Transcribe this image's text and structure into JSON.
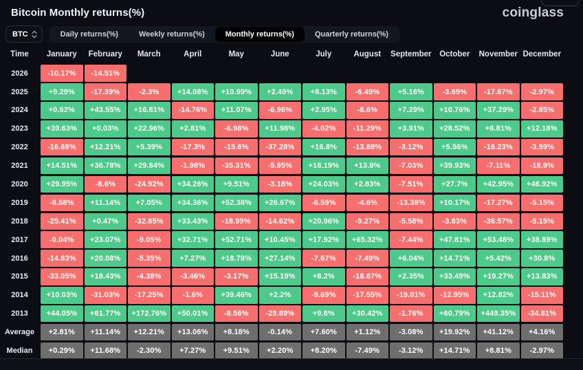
{
  "header": {
    "title": "Bitcoin Monthly returns(%)",
    "brand": "coinglass"
  },
  "controls": {
    "symbol_select": {
      "value": "BTC"
    },
    "tabs": [
      {
        "label": "Daily returns(%)",
        "active": false
      },
      {
        "label": "Weekly returns(%)",
        "active": false
      },
      {
        "label": "Monthly returns(%)",
        "active": true
      },
      {
        "label": "Quarterly returns(%)",
        "active": false
      }
    ]
  },
  "icons": {
    "select_chevrons": "up-down-chevrons"
  },
  "colors": {
    "positive": "#4DC98B",
    "negative": "#F66E6E",
    "summary": "#6E6E6E",
    "background": "#0b0d12"
  },
  "chart_data": {
    "type": "heatmap",
    "title": "Bitcoin Monthly returns(%)",
    "time_column_header": "Time",
    "columns": [
      "January",
      "February",
      "March",
      "April",
      "May",
      "June",
      "July",
      "August",
      "September",
      "October",
      "November",
      "December"
    ],
    "rows": [
      {
        "label": "2026",
        "kind": "year",
        "values": [
          "-10.17%",
          "-14.51%",
          "",
          "",
          "",
          "",
          "",
          "",
          "",
          "",
          "",
          ""
        ]
      },
      {
        "label": "2025",
        "kind": "year",
        "values": [
          "+9.29%",
          "-17.39%",
          "-2.3%",
          "+14.08%",
          "+10.99%",
          "+2.49%",
          "+8.13%",
          "-6.49%",
          "+5.16%",
          "-3.69%",
          "-17.67%",
          "-2.97%"
        ]
      },
      {
        "label": "2024",
        "kind": "year",
        "values": [
          "+0.62%",
          "+43.55%",
          "+16.81%",
          "-14.76%",
          "+11.07%",
          "-6.96%",
          "+2.95%",
          "-8.6%",
          "+7.29%",
          "+10.76%",
          "+37.29%",
          "-2.85%"
        ]
      },
      {
        "label": "2023",
        "kind": "year",
        "values": [
          "+39.63%",
          "+0.03%",
          "+22.96%",
          "+2.81%",
          "-6.98%",
          "+11.98%",
          "-4.02%",
          "-11.29%",
          "+3.91%",
          "+28.52%",
          "+8.81%",
          "+12.18%"
        ]
      },
      {
        "label": "2022",
        "kind": "year",
        "values": [
          "-16.68%",
          "+12.21%",
          "+5.39%",
          "-17.3%",
          "-15.6%",
          "-37.28%",
          "+16.8%",
          "-13.88%",
          "-3.12%",
          "+5.56%",
          "-16.23%",
          "-3.59%"
        ]
      },
      {
        "label": "2021",
        "kind": "year",
        "values": [
          "+14.51%",
          "+36.78%",
          "+29.84%",
          "-1.98%",
          "-35.31%",
          "-5.95%",
          "+18.19%",
          "+13.8%",
          "-7.03%",
          "+39.93%",
          "-7.11%",
          "-18.9%"
        ]
      },
      {
        "label": "2020",
        "kind": "year",
        "values": [
          "+29.95%",
          "-8.6%",
          "-24.92%",
          "+34.26%",
          "+9.51%",
          "-3.18%",
          "+24.03%",
          "+2.83%",
          "-7.51%",
          "+27.7%",
          "+42.95%",
          "+46.92%"
        ]
      },
      {
        "label": "2019",
        "kind": "year",
        "values": [
          "-8.58%",
          "+11.14%",
          "+7.05%",
          "+34.36%",
          "+52.38%",
          "+26.67%",
          "-6.59%",
          "-4.6%",
          "-13.38%",
          "+10.17%",
          "-17.27%",
          "-5.15%"
        ]
      },
      {
        "label": "2018",
        "kind": "year",
        "values": [
          "-25.41%",
          "+0.47%",
          "-32.85%",
          "+33.43%",
          "-18.99%",
          "-14.62%",
          "+20.96%",
          "-9.27%",
          "-5.58%",
          "-3.83%",
          "-36.57%",
          "-5.15%"
        ]
      },
      {
        "label": "2017",
        "kind": "year",
        "values": [
          "-0.04%",
          "+23.07%",
          "-9.05%",
          "+32.71%",
          "+52.71%",
          "+10.45%",
          "+17.92%",
          "+65.32%",
          "-7.44%",
          "+47.81%",
          "+53.48%",
          "+38.89%"
        ]
      },
      {
        "label": "2016",
        "kind": "year",
        "values": [
          "-14.83%",
          "+20.08%",
          "-5.35%",
          "+7.27%",
          "+18.78%",
          "+27.14%",
          "-7.67%",
          "-7.49%",
          "+6.04%",
          "+14.71%",
          "+5.42%",
          "+30.8%"
        ]
      },
      {
        "label": "2015",
        "kind": "year",
        "values": [
          "-33.05%",
          "+18.43%",
          "-4.38%",
          "-3.46%",
          "-3.17%",
          "+15.19%",
          "+8.2%",
          "-18.67%",
          "+2.35%",
          "+33.49%",
          "+19.27%",
          "+13.83%"
        ]
      },
      {
        "label": "2014",
        "kind": "year",
        "values": [
          "+10.03%",
          "-31.03%",
          "-17.25%",
          "-1.6%",
          "+39.46%",
          "+2.2%",
          "-9.69%",
          "-17.55%",
          "-19.01%",
          "-12.95%",
          "+12.82%",
          "-15.11%"
        ]
      },
      {
        "label": "2013",
        "kind": "year",
        "values": [
          "+44.05%",
          "+61.77%",
          "+172.76%",
          "+50.01%",
          "-8.56%",
          "-29.89%",
          "+9.6%",
          "+30.42%",
          "-1.76%",
          "+60.79%",
          "+449.35%",
          "-34.81%"
        ]
      },
      {
        "label": "Average",
        "kind": "summary",
        "values": [
          "+2.81%",
          "+11.14%",
          "+12.21%",
          "+13.06%",
          "+8.18%",
          "-0.14%",
          "+7.60%",
          "+1.12%",
          "-3.08%",
          "+19.92%",
          "+41.12%",
          "+4.16%"
        ]
      },
      {
        "label": "Median",
        "kind": "summary",
        "values": [
          "+0.29%",
          "+11.68%",
          "-2.30%",
          "+7.27%",
          "+9.51%",
          "+2.20%",
          "+8.20%",
          "-7.49%",
          "-3.12%",
          "+14.71%",
          "+8.81%",
          "-2.97%"
        ]
      }
    ]
  }
}
